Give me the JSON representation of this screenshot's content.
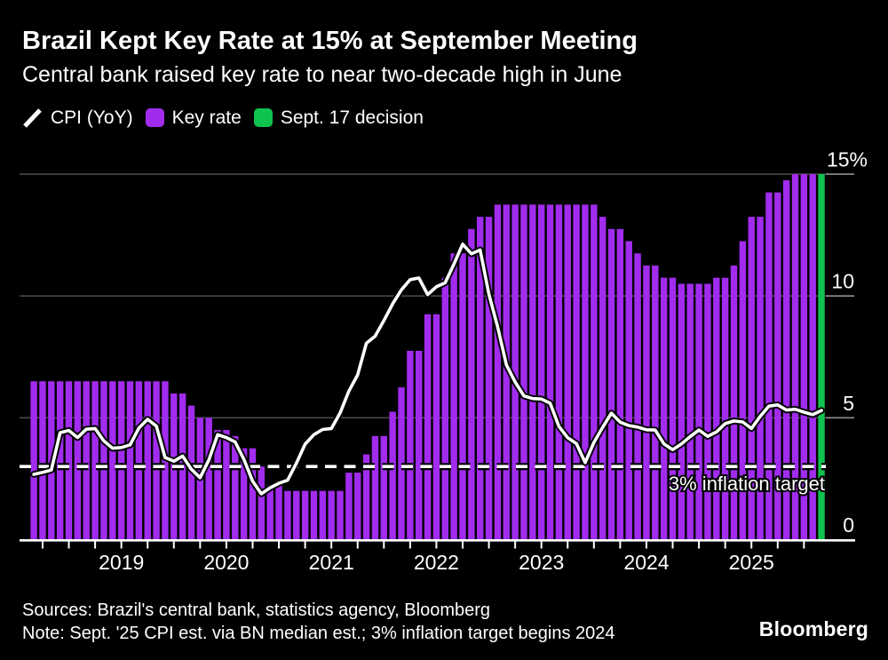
{
  "header": {
    "title": "Brazil Kept Key Rate at 15% at September Meeting",
    "subtitle": "Central bank raised key rate to near two-decade high in June"
  },
  "legend": [
    {
      "label": "CPI (YoY)",
      "type": "line",
      "color": "#ffffff"
    },
    {
      "label": "Key rate",
      "type": "square",
      "color": "#a12cee"
    },
    {
      "label": "Sept. 17 decision",
      "type": "square",
      "color": "#10c24e"
    }
  ],
  "chart_data": {
    "type": "bar+line",
    "start_month": "2018-03",
    "end_month": "2025-09",
    "unit": "%",
    "y_axis": {
      "min": 0,
      "max": 15,
      "ticks": [
        0,
        5,
        10,
        15
      ],
      "tick_labels": [
        "0",
        "5",
        "10",
        "15%"
      ],
      "grid": true
    },
    "x_axis": {
      "tick_interval": "quarterly",
      "year_labels": [
        "2019",
        "2020",
        "2021",
        "2022",
        "2023",
        "2024",
        "2025"
      ]
    },
    "series": [
      {
        "name": "Key rate",
        "type": "bar",
        "color": "#a12cee",
        "values": [
          6.5,
          6.5,
          6.5,
          6.5,
          6.5,
          6.5,
          6.5,
          6.5,
          6.5,
          6.5,
          6.5,
          6.5,
          6.5,
          6.5,
          6.5,
          6.5,
          6.0,
          6.0,
          5.5,
          5.0,
          5.0,
          4.5,
          4.5,
          4.25,
          3.75,
          3.75,
          3.0,
          2.25,
          2.25,
          2.0,
          2.0,
          2.0,
          2.0,
          2.0,
          2.0,
          2.0,
          2.75,
          2.75,
          3.5,
          4.25,
          4.25,
          5.25,
          6.25,
          7.75,
          7.75,
          9.25,
          9.25,
          10.75,
          11.75,
          11.75,
          12.75,
          13.25,
          13.25,
          13.75,
          13.75,
          13.75,
          13.75,
          13.75,
          13.75,
          13.75,
          13.75,
          13.75,
          13.75,
          13.75,
          13.75,
          13.25,
          12.75,
          12.75,
          12.25,
          11.75,
          11.25,
          11.25,
          10.75,
          10.75,
          10.5,
          10.5,
          10.5,
          10.5,
          10.75,
          10.75,
          11.25,
          12.25,
          13.25,
          13.25,
          14.25,
          14.25,
          14.75,
          15.0,
          15.0,
          15.0,
          15.0
        ]
      },
      {
        "name": "CPI (YoY)",
        "type": "line",
        "color": "#ffffff",
        "values": [
          2.68,
          2.76,
          2.86,
          4.39,
          4.48,
          4.19,
          4.53,
          4.56,
          4.05,
          3.75,
          3.78,
          3.89,
          4.58,
          4.94,
          4.66,
          3.37,
          3.22,
          3.43,
          2.89,
          2.54,
          3.27,
          4.31,
          4.19,
          4.01,
          3.3,
          2.4,
          1.88,
          2.13,
          2.31,
          2.44,
          3.14,
          3.92,
          4.31,
          4.52,
          4.56,
          5.2,
          6.1,
          6.76,
          8.06,
          8.35,
          8.99,
          9.68,
          10.25,
          10.67,
          10.74,
          10.06,
          10.38,
          10.54,
          11.3,
          12.13,
          11.73,
          11.89,
          10.07,
          8.73,
          7.17,
          6.47,
          5.9,
          5.79,
          5.77,
          5.6,
          4.65,
          4.18,
          3.94,
          3.16,
          3.99,
          4.61,
          5.19,
          4.82,
          4.68,
          4.62,
          4.51,
          4.5,
          3.93,
          3.69,
          3.93,
          4.23,
          4.5,
          4.24,
          4.42,
          4.76,
          4.87,
          4.83,
          4.56,
          5.06,
          5.48,
          5.53,
          5.32,
          5.35,
          5.23,
          5.13,
          5.3
        ]
      }
    ],
    "decision_bar": {
      "name": "Sept. 17 decision",
      "index": 90,
      "value": 15.0,
      "color": "#10c24e"
    },
    "target_line": {
      "value": 3,
      "label": "3% inflation target",
      "style": "dashed",
      "color": "#ffffff"
    }
  },
  "footer": {
    "sources": "Sources: Brazil's central bank, statistics agency, Bloomberg",
    "note": "Note: Sept. '25 CPI est. via BN median est.; 3% inflation target begins 2024",
    "logo": "Bloomberg"
  }
}
